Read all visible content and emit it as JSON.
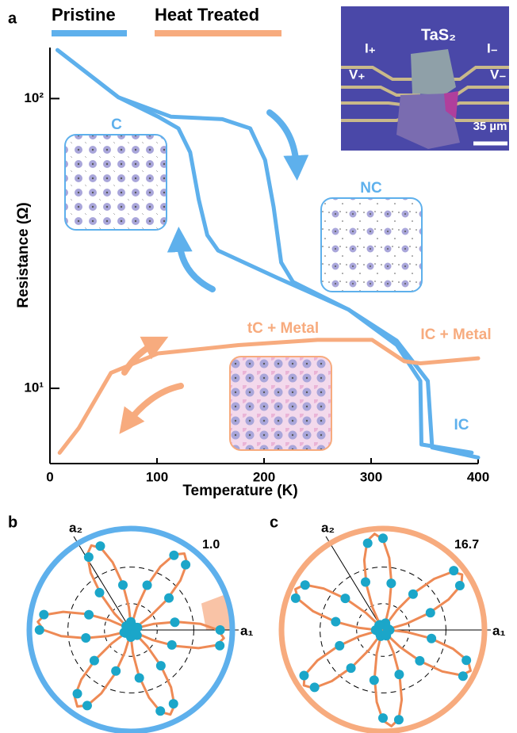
{
  "panel_labels": [
    "a",
    "b",
    "c"
  ],
  "inset": {
    "title": "TaS₂",
    "labels": [
      "I₊",
      "V₊",
      "I₋",
      "V₋"
    ],
    "scale_bar": "35 µm"
  },
  "chart_data": [
    {
      "type": "line",
      "x_label": "Temperature (K)",
      "y_label": "Resistance (Ω)",
      "xlim": [
        0,
        400
      ],
      "xticks": [
        0,
        100,
        200,
        300,
        400
      ],
      "ylim": [
        5.5,
        150
      ],
      "ylog": true,
      "yticks": [
        {
          "value": 10,
          "label": "10¹"
        },
        {
          "value": 100,
          "label": "10²"
        }
      ],
      "annotations": [
        "C",
        "NC",
        "tC + Metal",
        "IC + Metal",
        "IC"
      ],
      "series": [
        {
          "name": "Pristine",
          "color": "#5eb0ec",
          "curves": [
            {
              "x": [
                400,
                357,
                353,
                324,
                279,
                227,
                216,
                209,
                201,
                187,
                161,
                113,
                64,
                7
              ],
              "values": [
                5.77,
                6.25,
                10.6,
                14.6,
                18.7,
                23.3,
                27.2,
                42.2,
                61.4,
                78.9,
                84.9,
                86.6,
                101,
                147
              ]
            },
            {
              "x": [
                7,
                64,
                101,
                120,
                131,
                139,
                147,
                157,
                213,
                279,
                324,
                346,
                347,
                394
              ],
              "values": [
                147,
                101,
                86.6,
                78.9,
                65.3,
                44.9,
                33.8,
                29.9,
                24.0,
                18.7,
                14.1,
                10.6,
                6.4,
                6.0
              ]
            }
          ]
        },
        {
          "name": "Heat Treated",
          "color": "#f7ab7e",
          "curves": [
            {
              "x": [
                9,
                27,
                57,
                101,
                176,
                250,
                301,
                331,
                346,
                400
              ],
              "values": [
                5.99,
                7.3,
                11.3,
                13.2,
                14.1,
                14.7,
                14.7,
                12.4,
                12.2,
                12.7
              ]
            }
          ]
        }
      ]
    },
    {
      "type": "polar",
      "ring_color": "#5eb0ec",
      "rlim": [
        0,
        1
      ],
      "rticks": [
        {
          "value": 1,
          "label": "1.0"
        }
      ],
      "axis_labels": [
        "a₁",
        "a₂"
      ],
      "points": {
        "color": "#1ba6c9",
        "angles": [
          0,
          10,
          20,
          30,
          40,
          50,
          60,
          70,
          80,
          90,
          100,
          110,
          120,
          130,
          140,
          150,
          160,
          170,
          180,
          190,
          200,
          210,
          220,
          230,
          240,
          250,
          260,
          270,
          280,
          290,
          300,
          310,
          320,
          330,
          340,
          350
        ],
        "values": [
          0.88,
          0.44,
          0.07,
          0.05,
          0.49,
          0.84,
          0.85,
          0.47,
          0.05,
          0.08,
          0.45,
          0.88,
          0.83,
          0.48,
          0.06,
          0.04,
          0.44,
          0.87,
          0.9,
          0.45,
          0.07,
          0.06,
          0.47,
          0.82,
          0.86,
          0.43,
          0.05,
          0.07,
          0.48,
          0.85,
          0.84,
          0.46,
          0.08,
          0.05,
          0.43,
          0.89
        ]
      },
      "fit": {
        "color": "#ee8a55",
        "angles": [
          0,
          5,
          10,
          15,
          20,
          25,
          30,
          35,
          40,
          45,
          50,
          55,
          60,
          65,
          70,
          75,
          80,
          85,
          90,
          95,
          100,
          105,
          110,
          115,
          120,
          125,
          130,
          135,
          140,
          145,
          150,
          155,
          160,
          165,
          170,
          175,
          180,
          185,
          190,
          195,
          200,
          205,
          210,
          215,
          220,
          225,
          230,
          235,
          240,
          245,
          250,
          255,
          260,
          265,
          270,
          275,
          280,
          285,
          290,
          295,
          300,
          305,
          310,
          315,
          320,
          325,
          330,
          335,
          340,
          345,
          350,
          355
        ],
        "values": [
          0.86,
          0.69,
          0.46,
          0.23,
          0.06,
          0,
          0.06,
          0.23,
          0.46,
          0.69,
          0.86,
          0.92,
          0.86,
          0.69,
          0.46,
          0.23,
          0.06,
          0,
          0.06,
          0.23,
          0.46,
          0.69,
          0.86,
          0.92,
          0.86,
          0.69,
          0.46,
          0.23,
          0.06,
          0,
          0.06,
          0.23,
          0.46,
          0.69,
          0.86,
          0.92,
          0.86,
          0.69,
          0.46,
          0.23,
          0.06,
          0,
          0.06,
          0.23,
          0.46,
          0.69,
          0.86,
          0.92,
          0.86,
          0.69,
          0.46,
          0.23,
          0.06,
          0,
          0.06,
          0.23,
          0.46,
          0.69,
          0.86,
          0.92,
          0.86,
          0.69,
          0.46,
          0.23,
          0.06,
          0,
          0.06,
          0.23,
          0.46,
          0.69,
          0.86,
          0.92
        ]
      }
    },
    {
      "type": "polar",
      "ring_color": "#f7ab7e",
      "rlim": [
        0,
        16.7
      ],
      "rticks": [
        16.7
      ],
      "axis_labels": [
        "a₁",
        "a₂"
      ],
      "points": {
        "color": "#1ba6c9",
        "angles": [
          0,
          10,
          20,
          30,
          40,
          50,
          60,
          70,
          80,
          90,
          100,
          110,
          120,
          130,
          140,
          150,
          160,
          170,
          180,
          190,
          200,
          210,
          220,
          230,
          240,
          250,
          260,
          270,
          280,
          290,
          300,
          310,
          320,
          330,
          340,
          350
        ],
        "values": [
          1.1,
          0.9,
          8.3,
          14.6,
          15.2,
          7.7,
          0.8,
          1.2,
          7.8,
          15.1,
          14.5,
          8.4,
          1.0,
          1.0,
          8.1,
          14.8,
          15.3,
          7.9,
          1.2,
          0.9,
          7.6,
          15.0,
          14.7,
          8.2,
          0.9,
          1.1,
          8.4,
          14.5,
          15.0,
          7.8,
          1.1,
          0.8,
          7.9,
          15.2,
          14.6,
          8.1
        ]
      },
      "fit": {
        "color": "#ee8a55",
        "angles": [
          0,
          5,
          10,
          15,
          20,
          25,
          30,
          35,
          40,
          45,
          50,
          55,
          60,
          65,
          70,
          75,
          80,
          85,
          90,
          95,
          100,
          105,
          110,
          115,
          120,
          125,
          130,
          135,
          140,
          145,
          150,
          155,
          160,
          165,
          170,
          175,
          180,
          185,
          190,
          195,
          200,
          205,
          210,
          215,
          220,
          225,
          230,
          235,
          240,
          245,
          250,
          255,
          260,
          265,
          270,
          275,
          280,
          285,
          290,
          295,
          300,
          305,
          310,
          315,
          320,
          325,
          330,
          335,
          340,
          345,
          350,
          355
        ],
        "values": [
          1.0,
          0,
          1.0,
          4.0,
          8.0,
          11.9,
          14.9,
          15.9,
          14.9,
          11.9,
          8.0,
          4.0,
          1.0,
          0,
          1.0,
          4.0,
          8.0,
          11.9,
          14.9,
          15.9,
          14.9,
          11.9,
          8.0,
          4.0,
          1.0,
          0,
          1.0,
          4.0,
          8.0,
          11.9,
          14.9,
          15.9,
          14.9,
          11.9,
          8.0,
          4.0,
          1.0,
          0,
          1.0,
          4.0,
          8.0,
          11.9,
          14.9,
          15.9,
          14.9,
          11.9,
          8.0,
          4.0,
          1.0,
          0,
          1.0,
          4.0,
          8.0,
          11.9,
          14.9,
          15.9,
          14.9,
          11.9,
          8.0,
          4.0,
          1.0,
          0,
          1.0,
          4.0,
          8.0,
          11.9,
          14.9,
          15.9,
          14.9,
          11.9,
          8.0,
          4.0
        ]
      }
    }
  ]
}
